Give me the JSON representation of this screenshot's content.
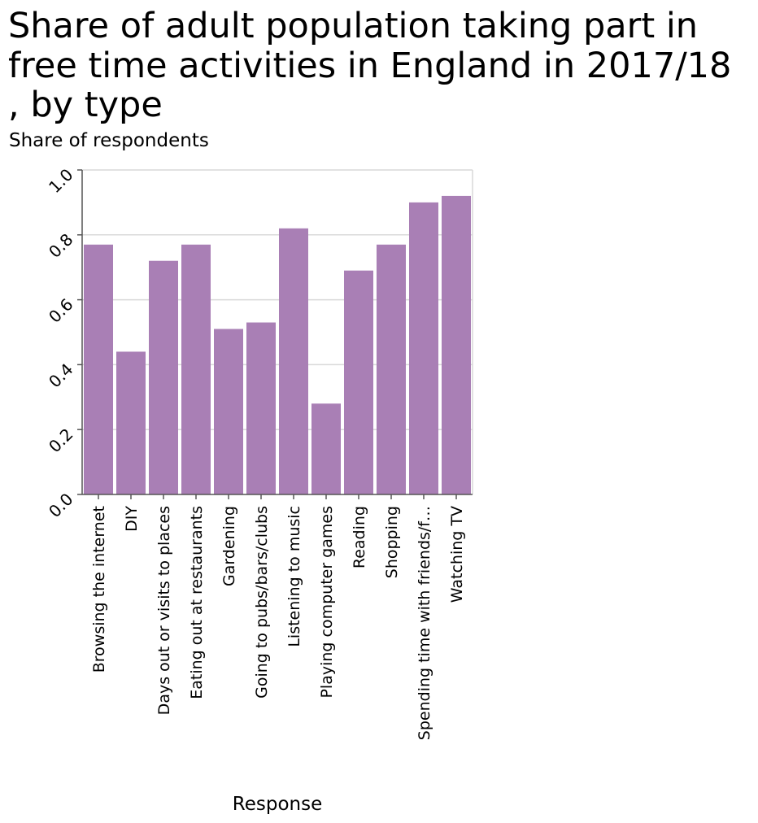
{
  "chart_data": {
    "type": "bar",
    "title_lines": [
      "Share of adult population taking part in",
      "free time activities in England in 2017/18",
      ", by type"
    ],
    "xlabel": "Response",
    "ylabel": "Share of respondents",
    "ylim": [
      0,
      1.0
    ],
    "yticks": [
      "0.0",
      "0.2",
      "0.4",
      "0.6",
      "0.8",
      "1.0"
    ],
    "grid": "horizontal",
    "bar_color": "#a97fb5",
    "categories": [
      "Browsing the internet",
      "DIY",
      "Days out or visits to places",
      "Eating out at restaurants",
      "Gardening",
      "Going to pubs/bars/clubs",
      "Listening to music",
      "Playing computer games",
      "Reading",
      "Shopping",
      "Spending time with friends/f…",
      "Watching TV"
    ],
    "values": [
      0.77,
      0.44,
      0.72,
      0.77,
      0.51,
      0.53,
      0.82,
      0.28,
      0.69,
      0.77,
      0.9,
      0.92
    ]
  }
}
